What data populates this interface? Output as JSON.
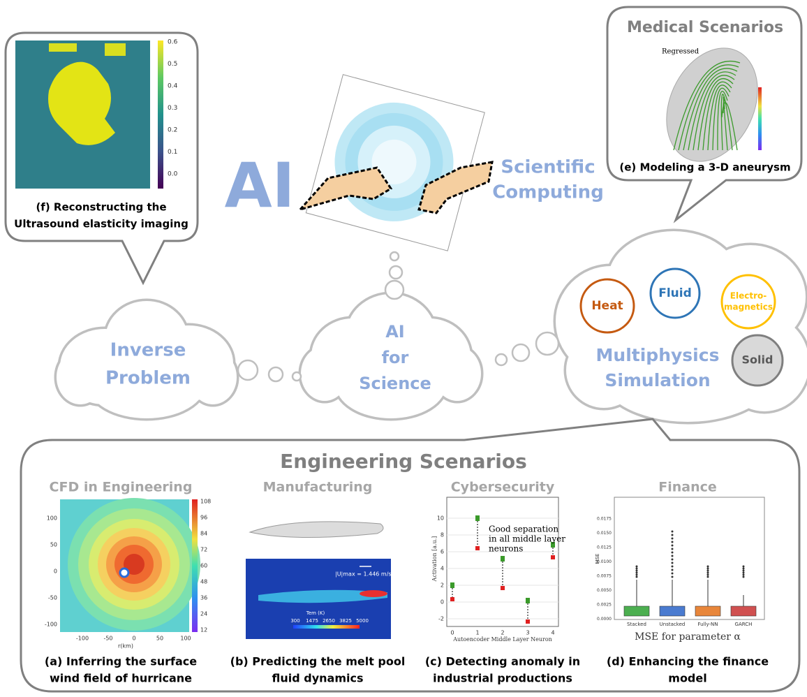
{
  "hero": {
    "ai": "AI",
    "sc_lines": [
      "Scientific",
      "Computing"
    ]
  },
  "clouds": [
    {
      "lines": [
        "Inverse",
        "Problem"
      ]
    },
    {
      "lines": [
        "AI",
        "for",
        "Science"
      ]
    },
    {
      "lines": [
        "Multiphysics",
        "Simulation"
      ]
    }
  ],
  "physics": [
    {
      "lines": [
        "Heat"
      ]
    },
    {
      "lines": [
        "Fluid"
      ]
    },
    {
      "lines": [
        "Electro-",
        "magnetics"
      ]
    },
    {
      "lines": [
        "Solid"
      ]
    }
  ],
  "medical": {
    "title": "Medical Scenarios",
    "figure_label": "Regressed",
    "caption": "(e) Modeling a 3-D aneurysm"
  },
  "inverse_panel": {
    "colorbar_ticks": [
      "0.6",
      "0.5",
      "0.4",
      "0.3",
      "0.2",
      "0.1",
      "0.0"
    ],
    "caption_lines": [
      "(f) Reconstructing the",
      "Ultrasound elasticity imaging"
    ]
  },
  "engineering": {
    "title": "Engineering Scenarios",
    "panels": [
      {
        "title": "CFD in Engineering",
        "caption_lines": [
          "(a) Inferring the surface",
          "wind field of hurricane"
        ],
        "colorbar_ticks": [
          "108",
          "96",
          "84",
          "72",
          "60",
          "48",
          "36",
          "24",
          "12"
        ],
        "y_ticks": [
          "100",
          "50",
          "0",
          "-50",
          "-100"
        ],
        "x_ticks": [
          "-100",
          "-50",
          "0",
          "50",
          "100"
        ],
        "x_label": "r(km)"
      },
      {
        "title": "Manufacturing",
        "caption_lines": [
          "(b) Predicting the melt pool",
          "fluid dynamics"
        ],
        "velocity_label": "|U|max = 1.446 m/s",
        "colorbar_title": "Tem (K)",
        "colorbar_ticks": [
          "300",
          "1475",
          "2650",
          "3825",
          "5000"
        ]
      },
      {
        "title": "Cybersecurity",
        "caption_lines": [
          "(c) Detecting anomaly in",
          "industrial productions"
        ],
        "annotation_lines": [
          "Good separation",
          "in all middle layer",
          "neurons"
        ],
        "y_ticks": [
          "10",
          "8",
          "6",
          "4",
          "2",
          "0",
          "-2"
        ],
        "x_ticks": [
          "0",
          "1",
          "2",
          "3",
          "4"
        ],
        "x_label": "Autoencoder Middle Layer Neuron",
        "y_label": "Activation [a.u.]"
      },
      {
        "title": "Finance",
        "caption_lines": [
          "(d) Enhancing the finance",
          "model"
        ],
        "y_ticks": [
          "0.0175",
          "0.0150",
          "0.0125",
          "0.0100",
          "0.0075",
          "0.0050",
          "0.0025",
          "0.0000"
        ],
        "y_label": "MSE",
        "categories": [
          "Stacked",
          "Unstacked",
          "Fully-NN",
          "GARCH"
        ],
        "x_label": "MSE for parameter α"
      }
    ]
  }
}
